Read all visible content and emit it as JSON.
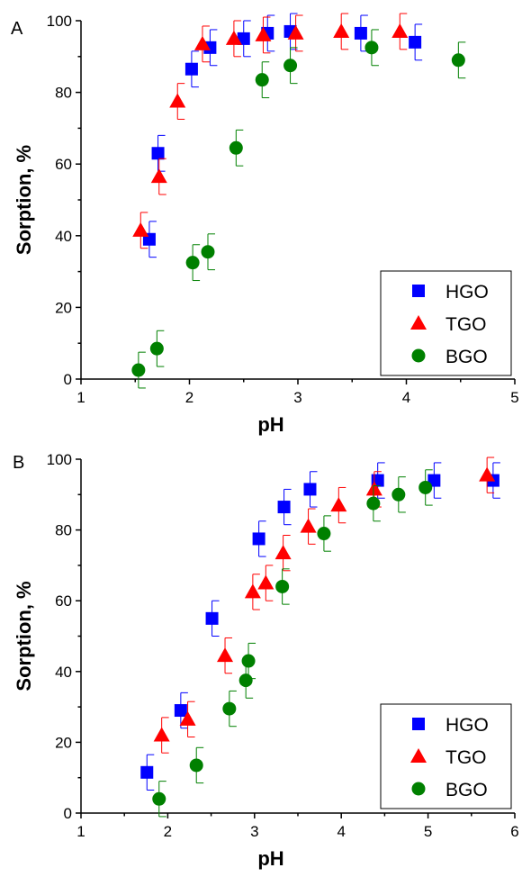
{
  "chart_data": [
    {
      "type": "scatter",
      "panel_label": "A",
      "xlabel": "pH",
      "ylabel": "Sorption, %",
      "xlim": [
        1,
        5
      ],
      "ylim": [
        0,
        100
      ],
      "xticks": [
        1,
        2,
        3,
        4,
        5
      ],
      "yticks": [
        0,
        20,
        40,
        60,
        80,
        100
      ],
      "legend_placement": "bottom-right",
      "series": [
        {
          "name": "HGO",
          "color": "#0000ff",
          "marker": "square",
          "x": [
            1.63,
            1.71,
            2.02,
            2.19,
            2.5,
            2.72,
            2.93,
            3.58,
            4.08
          ],
          "y": [
            39,
            63,
            86.5,
            92.5,
            95,
            96.5,
            97,
            96.5,
            94
          ],
          "err": [
            5,
            5,
            5,
            5,
            5,
            5,
            5,
            5,
            5
          ]
        },
        {
          "name": "TGO",
          "color": "#ff0000",
          "marker": "triangle",
          "x": [
            1.55,
            1.72,
            1.89,
            2.12,
            2.41,
            2.68,
            2.98,
            3.4,
            3.94
          ],
          "y": [
            41.5,
            56.5,
            77.5,
            93.5,
            95,
            96,
            96.5,
            97,
            97
          ],
          "err": [
            5,
            5,
            5,
            5,
            5,
            5,
            5,
            5,
            5
          ]
        },
        {
          "name": "BGO",
          "color": "#008000",
          "marker": "circle",
          "x": [
            1.53,
            1.7,
            2.03,
            2.17,
            2.43,
            2.67,
            2.93,
            3.68,
            4.48
          ],
          "y": [
            2.5,
            8.5,
            32.5,
            35.5,
            64.5,
            83.5,
            87.5,
            92.5,
            89
          ],
          "err": [
            5,
            5,
            5,
            5,
            5,
            5,
            5,
            5,
            5
          ]
        }
      ]
    },
    {
      "type": "scatter",
      "panel_label": "B",
      "xlabel": "pH",
      "ylabel": "Sorption, %",
      "xlim": [
        1,
        6
      ],
      "ylim": [
        0,
        100
      ],
      "xticks": [
        1,
        2,
        3,
        4,
        5,
        6
      ],
      "yticks": [
        0,
        20,
        40,
        60,
        80,
        100
      ],
      "legend_placement": "bottom-right",
      "series": [
        {
          "name": "HGO",
          "color": "#0000ff",
          "marker": "square",
          "x": [
            1.76,
            2.15,
            2.51,
            3.05,
            3.34,
            3.64,
            4.42,
            5.07,
            5.75
          ],
          "y": [
            11.5,
            29,
            55,
            77.5,
            86.5,
            91.5,
            94,
            94,
            94
          ],
          "err": [
            5,
            5,
            5,
            5,
            5,
            5,
            5,
            5,
            5
          ]
        },
        {
          "name": "TGO",
          "color": "#ff0000",
          "marker": "triangle",
          "x": [
            1.93,
            2.23,
            2.66,
            2.98,
            3.13,
            3.33,
            3.62,
            3.97,
            4.38,
            5.68
          ],
          "y": [
            22,
            26.5,
            44.5,
            62.5,
            65,
            73.5,
            81,
            87,
            91.5,
            95.5
          ],
          "err": [
            5,
            5,
            5,
            5,
            5,
            5,
            5,
            5,
            5,
            5
          ]
        },
        {
          "name": "BGO",
          "color": "#008000",
          "marker": "circle",
          "x": [
            1.9,
            2.33,
            2.71,
            2.9,
            2.93,
            3.32,
            3.8,
            4.37,
            4.66,
            4.97
          ],
          "y": [
            4,
            13.5,
            29.5,
            37.5,
            43,
            64,
            79,
            87.5,
            90,
            92
          ],
          "err": [
            5,
            5,
            5,
            5,
            5,
            5,
            5,
            5,
            5,
            5
          ]
        }
      ]
    }
  ]
}
